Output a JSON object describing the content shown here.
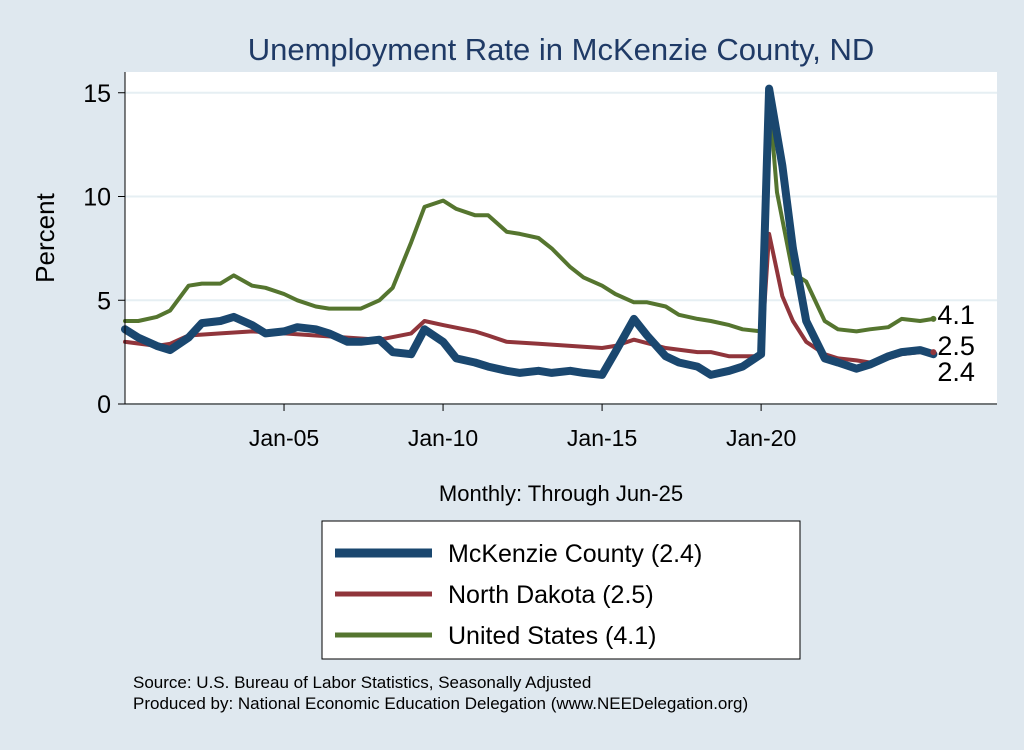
{
  "chart_data": {
    "type": "line",
    "title": "Unemployment Rate in McKenzie  County, ND",
    "ylabel": "Percent",
    "xlabel": "Monthly: Through Jun-25",
    "ylim": [
      0,
      16
    ],
    "xlim": [
      "2000-01",
      "2027-06"
    ],
    "yticks": [
      0,
      5,
      10,
      15
    ],
    "xticks": [
      {
        "label": "Jan-05",
        "date": "2005-01"
      },
      {
        "label": "Jan-10",
        "date": "2010-01"
      },
      {
        "label": "Jan-15",
        "date": "2015-01"
      },
      {
        "label": "Jan-20",
        "date": "2020-01"
      }
    ],
    "grid": true,
    "legend_position": "bottom",
    "series": [
      {
        "name": "McKenzie  County (2.4)",
        "end_label": "2.4",
        "color": "#1a476f",
        "points": [
          [
            "2000-01",
            3.6
          ],
          [
            "2000-06",
            3.2
          ],
          [
            "2001-01",
            2.8
          ],
          [
            "2001-06",
            2.6
          ],
          [
            "2002-01",
            3.2
          ],
          [
            "2002-06",
            3.9
          ],
          [
            "2003-01",
            4.0
          ],
          [
            "2003-06",
            4.2
          ],
          [
            "2004-01",
            3.8
          ],
          [
            "2004-06",
            3.4
          ],
          [
            "2005-01",
            3.5
          ],
          [
            "2005-06",
            3.7
          ],
          [
            "2006-01",
            3.6
          ],
          [
            "2006-06",
            3.4
          ],
          [
            "2007-01",
            3.0
          ],
          [
            "2007-06",
            3.0
          ],
          [
            "2008-01",
            3.1
          ],
          [
            "2008-06",
            2.5
          ],
          [
            "2009-01",
            2.4
          ],
          [
            "2009-06",
            3.6
          ],
          [
            "2010-01",
            3.0
          ],
          [
            "2010-06",
            2.2
          ],
          [
            "2011-01",
            2.0
          ],
          [
            "2011-06",
            1.8
          ],
          [
            "2012-01",
            1.6
          ],
          [
            "2012-06",
            1.5
          ],
          [
            "2013-01",
            1.6
          ],
          [
            "2013-06",
            1.5
          ],
          [
            "2014-01",
            1.6
          ],
          [
            "2014-06",
            1.5
          ],
          [
            "2015-01",
            1.4
          ],
          [
            "2015-06",
            2.5
          ],
          [
            "2016-01",
            4.1
          ],
          [
            "2016-06",
            3.3
          ],
          [
            "2017-01",
            2.3
          ],
          [
            "2017-06",
            2.0
          ],
          [
            "2018-01",
            1.8
          ],
          [
            "2018-06",
            1.4
          ],
          [
            "2019-01",
            1.6
          ],
          [
            "2019-06",
            1.8
          ],
          [
            "2020-01",
            2.4
          ],
          [
            "2020-04",
            15.2
          ],
          [
            "2020-09",
            11.5
          ],
          [
            "2021-01",
            7.5
          ],
          [
            "2021-06",
            4.0
          ],
          [
            "2022-01",
            2.2
          ],
          [
            "2022-06",
            2.0
          ],
          [
            "2023-01",
            1.7
          ],
          [
            "2023-06",
            1.9
          ],
          [
            "2024-01",
            2.3
          ],
          [
            "2024-06",
            2.5
          ],
          [
            "2025-01",
            2.6
          ],
          [
            "2025-06",
            2.4
          ]
        ]
      },
      {
        "name": "North Dakota (2.5)",
        "end_label": "2.5",
        "color": "#90353b",
        "points": [
          [
            "2000-01",
            3.0
          ],
          [
            "2001-01",
            2.8
          ],
          [
            "2001-06",
            2.9
          ],
          [
            "2002-01",
            3.3
          ],
          [
            "2003-01",
            3.4
          ],
          [
            "2004-01",
            3.5
          ],
          [
            "2005-01",
            3.4
          ],
          [
            "2006-01",
            3.3
          ],
          [
            "2007-01",
            3.2
          ],
          [
            "2008-01",
            3.1
          ],
          [
            "2009-01",
            3.4
          ],
          [
            "2009-06",
            4.0
          ],
          [
            "2010-01",
            3.8
          ],
          [
            "2011-01",
            3.5
          ],
          [
            "2011-06",
            3.3
          ],
          [
            "2012-01",
            3.0
          ],
          [
            "2013-01",
            2.9
          ],
          [
            "2014-01",
            2.8
          ],
          [
            "2015-01",
            2.7
          ],
          [
            "2015-06",
            2.8
          ],
          [
            "2016-01",
            3.1
          ],
          [
            "2017-01",
            2.7
          ],
          [
            "2018-01",
            2.5
          ],
          [
            "2018-06",
            2.5
          ],
          [
            "2019-01",
            2.3
          ],
          [
            "2020-01",
            2.3
          ],
          [
            "2020-04",
            8.2
          ],
          [
            "2020-09",
            5.2
          ],
          [
            "2021-01",
            4.0
          ],
          [
            "2021-06",
            3.0
          ],
          [
            "2022-01",
            2.4
          ],
          [
            "2022-06",
            2.2
          ],
          [
            "2023-01",
            2.1
          ],
          [
            "2023-06",
            2.0
          ],
          [
            "2024-01",
            2.2
          ],
          [
            "2024-06",
            2.4
          ],
          [
            "2025-01",
            2.5
          ],
          [
            "2025-06",
            2.5
          ]
        ]
      },
      {
        "name": "United States (4.1)",
        "end_label": "4.1",
        "color": "#55752f",
        "points": [
          [
            "2000-01",
            4.0
          ],
          [
            "2000-06",
            4.0
          ],
          [
            "2001-01",
            4.2
          ],
          [
            "2001-06",
            4.5
          ],
          [
            "2002-01",
            5.7
          ],
          [
            "2002-06",
            5.8
          ],
          [
            "2003-01",
            5.8
          ],
          [
            "2003-06",
            6.2
          ],
          [
            "2004-01",
            5.7
          ],
          [
            "2004-06",
            5.6
          ],
          [
            "2005-01",
            5.3
          ],
          [
            "2005-06",
            5.0
          ],
          [
            "2006-01",
            4.7
          ],
          [
            "2006-06",
            4.6
          ],
          [
            "2007-01",
            4.6
          ],
          [
            "2007-06",
            4.6
          ],
          [
            "2008-01",
            5.0
          ],
          [
            "2008-06",
            5.6
          ],
          [
            "2009-01",
            7.8
          ],
          [
            "2009-06",
            9.5
          ],
          [
            "2010-01",
            9.8
          ],
          [
            "2010-06",
            9.4
          ],
          [
            "2011-01",
            9.1
          ],
          [
            "2011-06",
            9.1
          ],
          [
            "2012-01",
            8.3
          ],
          [
            "2012-06",
            8.2
          ],
          [
            "2013-01",
            8.0
          ],
          [
            "2013-06",
            7.5
          ],
          [
            "2014-01",
            6.6
          ],
          [
            "2014-06",
            6.1
          ],
          [
            "2015-01",
            5.7
          ],
          [
            "2015-06",
            5.3
          ],
          [
            "2016-01",
            4.9
          ],
          [
            "2016-06",
            4.9
          ],
          [
            "2017-01",
            4.7
          ],
          [
            "2017-06",
            4.3
          ],
          [
            "2018-01",
            4.1
          ],
          [
            "2018-06",
            4.0
          ],
          [
            "2019-01",
            3.8
          ],
          [
            "2019-06",
            3.6
          ],
          [
            "2020-01",
            3.5
          ],
          [
            "2020-04",
            14.8
          ],
          [
            "2020-07",
            10.2
          ],
          [
            "2021-01",
            6.3
          ],
          [
            "2021-06",
            5.9
          ],
          [
            "2022-01",
            4.0
          ],
          [
            "2022-06",
            3.6
          ],
          [
            "2023-01",
            3.5
          ],
          [
            "2023-06",
            3.6
          ],
          [
            "2024-01",
            3.7
          ],
          [
            "2024-06",
            4.1
          ],
          [
            "2025-01",
            4.0
          ],
          [
            "2025-06",
            4.1
          ]
        ]
      }
    ],
    "source_lines": [
      "Source: U.S. Bureau of Labor Statistics, Seasonally Adjusted",
      "Produced by: National Economic Education Delegation (www.NEEDelegation.org)"
    ]
  }
}
